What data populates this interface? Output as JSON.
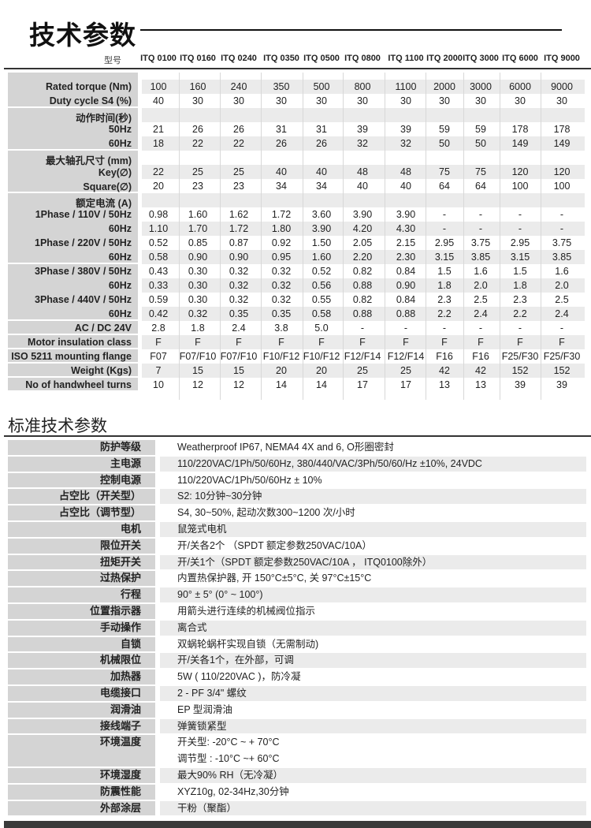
{
  "section1": {
    "title": "技术参数",
    "model_label": "型号",
    "models": [
      "ITQ 0100",
      "ITQ 0160",
      "ITQ 0240",
      "ITQ 0350",
      "ITQ 0500",
      "ITQ 0800",
      "ITQ 1100",
      "ITQ 2000",
      "ITQ 3000",
      "ITQ 6000",
      "ITQ 9000"
    ],
    "groups": [
      {
        "rows": [
          {
            "label": "Rated torque (Nm)",
            "values": [
              "100",
              "160",
              "240",
              "350",
              "500",
              "800",
              "1100",
              "2000",
              "3000",
              "6000",
              "9000"
            ]
          },
          {
            "label": "Duty cycle S4 (%)",
            "values": [
              "40",
              "30",
              "30",
              "30",
              "30",
              "30",
              "30",
              "30",
              "30",
              "30",
              "30"
            ]
          }
        ]
      },
      {
        "rows": [
          {
            "label": "动作时间(秒)",
            "values": []
          },
          {
            "label": "50Hz",
            "values": [
              "21",
              "26",
              "26",
              "31",
              "31",
              "39",
              "39",
              "59",
              "59",
              "178",
              "178"
            ]
          },
          {
            "label": "60Hz",
            "values": [
              "18",
              "22",
              "22",
              "26",
              "26",
              "32",
              "32",
              "50",
              "50",
              "149",
              "149"
            ]
          }
        ]
      },
      {
        "rows": [
          {
            "label": "最大轴孔尺寸 (mm)",
            "values": []
          },
          {
            "label": "Key(∅)",
            "values": [
              "22",
              "25",
              "25",
              "40",
              "40",
              "48",
              "48",
              "75",
              "75",
              "120",
              "120"
            ]
          },
          {
            "label": "Square(∅)",
            "values": [
              "20",
              "23",
              "23",
              "34",
              "34",
              "40",
              "40",
              "64",
              "64",
              "100",
              "100"
            ]
          }
        ]
      },
      {
        "rows": [
          {
            "label": "额定电流 (A)",
            "values": []
          },
          {
            "label": "1Phase / 110V / 50Hz",
            "values": [
              "0.98",
              "1.60",
              "1.62",
              "1.72",
              "3.60",
              "3.90",
              "3.90",
              "-",
              "-",
              "-",
              "-"
            ]
          },
          {
            "label": "60Hz",
            "values": [
              "1.10",
              "1.70",
              "1.72",
              "1.80",
              "3.90",
              "4.20",
              "4.30",
              "-",
              "-",
              "-",
              "-"
            ]
          },
          {
            "label": "1Phase / 220V / 50Hz",
            "values": [
              "0.52",
              "0.85",
              "0.87",
              "0.92",
              "1.50",
              "2.05",
              "2.15",
              "2.95",
              "3.75",
              "2.95",
              "3.75"
            ]
          },
          {
            "label": "60Hz",
            "values": [
              "0.58",
              "0.90",
              "0.90",
              "0.95",
              "1.60",
              "2.20",
              "2.30",
              "3.15",
              "3.85",
              "3.15",
              "3.85"
            ]
          }
        ]
      },
      {
        "rows": [
          {
            "label": "3Phase / 380V / 50Hz",
            "values": [
              "0.43",
              "0.30",
              "0.32",
              "0.32",
              "0.52",
              "0.82",
              "0.84",
              "1.5",
              "1.6",
              "1.5",
              "1.6"
            ]
          },
          {
            "label": "60Hz",
            "values": [
              "0.33",
              "0.30",
              "0.32",
              "0.32",
              "0.56",
              "0.88",
              "0.90",
              "1.8",
              "2.0",
              "1.8",
              "2.0"
            ]
          },
          {
            "label": "3Phase / 440V / 50Hz",
            "values": [
              "0.59",
              "0.30",
              "0.32",
              "0.32",
              "0.55",
              "0.82",
              "0.84",
              "2.3",
              "2.5",
              "2.3",
              "2.5"
            ]
          },
          {
            "label": "60Hz",
            "values": [
              "0.42",
              "0.32",
              "0.35",
              "0.35",
              "0.58",
              "0.88",
              "0.88",
              "2.2",
              "2.4",
              "2.2",
              "2.4"
            ]
          }
        ]
      },
      {
        "rows": [
          {
            "label": "AC / DC 24V",
            "values": [
              "2.8",
              "1.8",
              "2.4",
              "3.8",
              "5.0",
              "-",
              "-",
              "-",
              "-",
              "-",
              "-"
            ]
          }
        ]
      },
      {
        "rows": [
          {
            "label": "Motor insulation class",
            "values": [
              "F",
              "F",
              "F",
              "F",
              "F",
              "F",
              "F",
              "F",
              "F",
              "F",
              "F"
            ]
          }
        ]
      },
      {
        "rows": [
          {
            "label": "ISO 5211 mounting flange",
            "values": [
              "F07",
              "F07/F10",
              "F07/F10",
              "F10/F12",
              "F10/F12",
              "F12/F14",
              "F12/F14",
              "F16",
              "F16",
              "F25/F30",
              "F25/F30"
            ]
          }
        ]
      },
      {
        "rows": [
          {
            "label": "Weight (Kgs)",
            "values": [
              "7",
              "15",
              "15",
              "20",
              "20",
              "25",
              "25",
              "42",
              "42",
              "152",
              "152"
            ]
          }
        ]
      },
      {
        "rows": [
          {
            "label": "No of handwheel turns",
            "values": [
              "10",
              "12",
              "12",
              "14",
              "14",
              "17",
              "17",
              "13",
              "13",
              "39",
              "39"
            ]
          }
        ]
      }
    ]
  },
  "section2": {
    "title": "标准技术参数",
    "rows": [
      {
        "label": "防护等级",
        "lines": [
          "Weatherproof IP67, NEMA4 4X and 6, O形圈密封"
        ]
      },
      {
        "label": "主电源",
        "lines": [
          "110/220VAC/1Ph/50/60Hz, 380/440/VAC/3Ph/50/60/Hz ±10%, 24VDC"
        ]
      },
      {
        "label": "控制电源",
        "lines": [
          "110/220VAC/1Ph/50/60Hz ± 10%"
        ]
      },
      {
        "label": "占空比（开关型）",
        "lines": [
          "S2: 10分钟~30分钟"
        ]
      },
      {
        "label": "占空比（调节型）",
        "lines": [
          "S4, 30~50%, 起动次数300~1200 次/小时"
        ]
      },
      {
        "label": "电机",
        "lines": [
          "鼠笼式电机"
        ]
      },
      {
        "label": "限位开关",
        "lines": [
          "开/关各2个 （SPDT 额定参数250VAC/10A）"
        ]
      },
      {
        "label": "扭矩开关",
        "lines": [
          "开/关1个（SPDT 额定参数250VAC/10A ， ITQ0100除外）"
        ]
      },
      {
        "label": "过热保护",
        "lines": [
          "内置热保护器, 开 150°C±5°C, 关 97°C±15°C"
        ]
      },
      {
        "label": "行程",
        "lines": [
          "90° ± 5° (0° ~ 100°)"
        ]
      },
      {
        "label": "位置指示器",
        "lines": [
          "用箭头进行连续的机械阀位指示"
        ]
      },
      {
        "label": "手动操作",
        "lines": [
          "离合式"
        ]
      },
      {
        "label": "自锁",
        "lines": [
          "双蜗轮蜗杆实现自锁（无需制动)"
        ]
      },
      {
        "label": "机械限位",
        "lines": [
          "开/关各1个，在外部，可调"
        ]
      },
      {
        "label": "加热器",
        "lines": [
          "5W ( 110/220VAC )，防冷凝"
        ]
      },
      {
        "label": "电缆接口",
        "lines": [
          "2 - PF 3/4\" 螺纹"
        ]
      },
      {
        "label": "润滑油",
        "lines": [
          "EP 型润滑油"
        ]
      },
      {
        "label": "接线端子",
        "lines": [
          "弹簧锁紧型"
        ]
      },
      {
        "label": "环境温度",
        "lines": [
          "开关型: -20°C ~ + 70°C",
          "调节型 : -10°C ~+ 60°C"
        ]
      },
      {
        "label": "环境湿度",
        "lines": [
          "最大90% RH（无冷凝）"
        ]
      },
      {
        "label": "防震性能",
        "lines": [
          "XYZ10g, 02-34Hz,30分钟"
        ]
      },
      {
        "label": "外部涂层",
        "lines": [
          "干粉（聚酯）"
        ]
      }
    ]
  },
  "colors": {
    "label_bg": "#d4d4d4",
    "row_shade": "#ebebeb",
    "rule": "#333333"
  }
}
